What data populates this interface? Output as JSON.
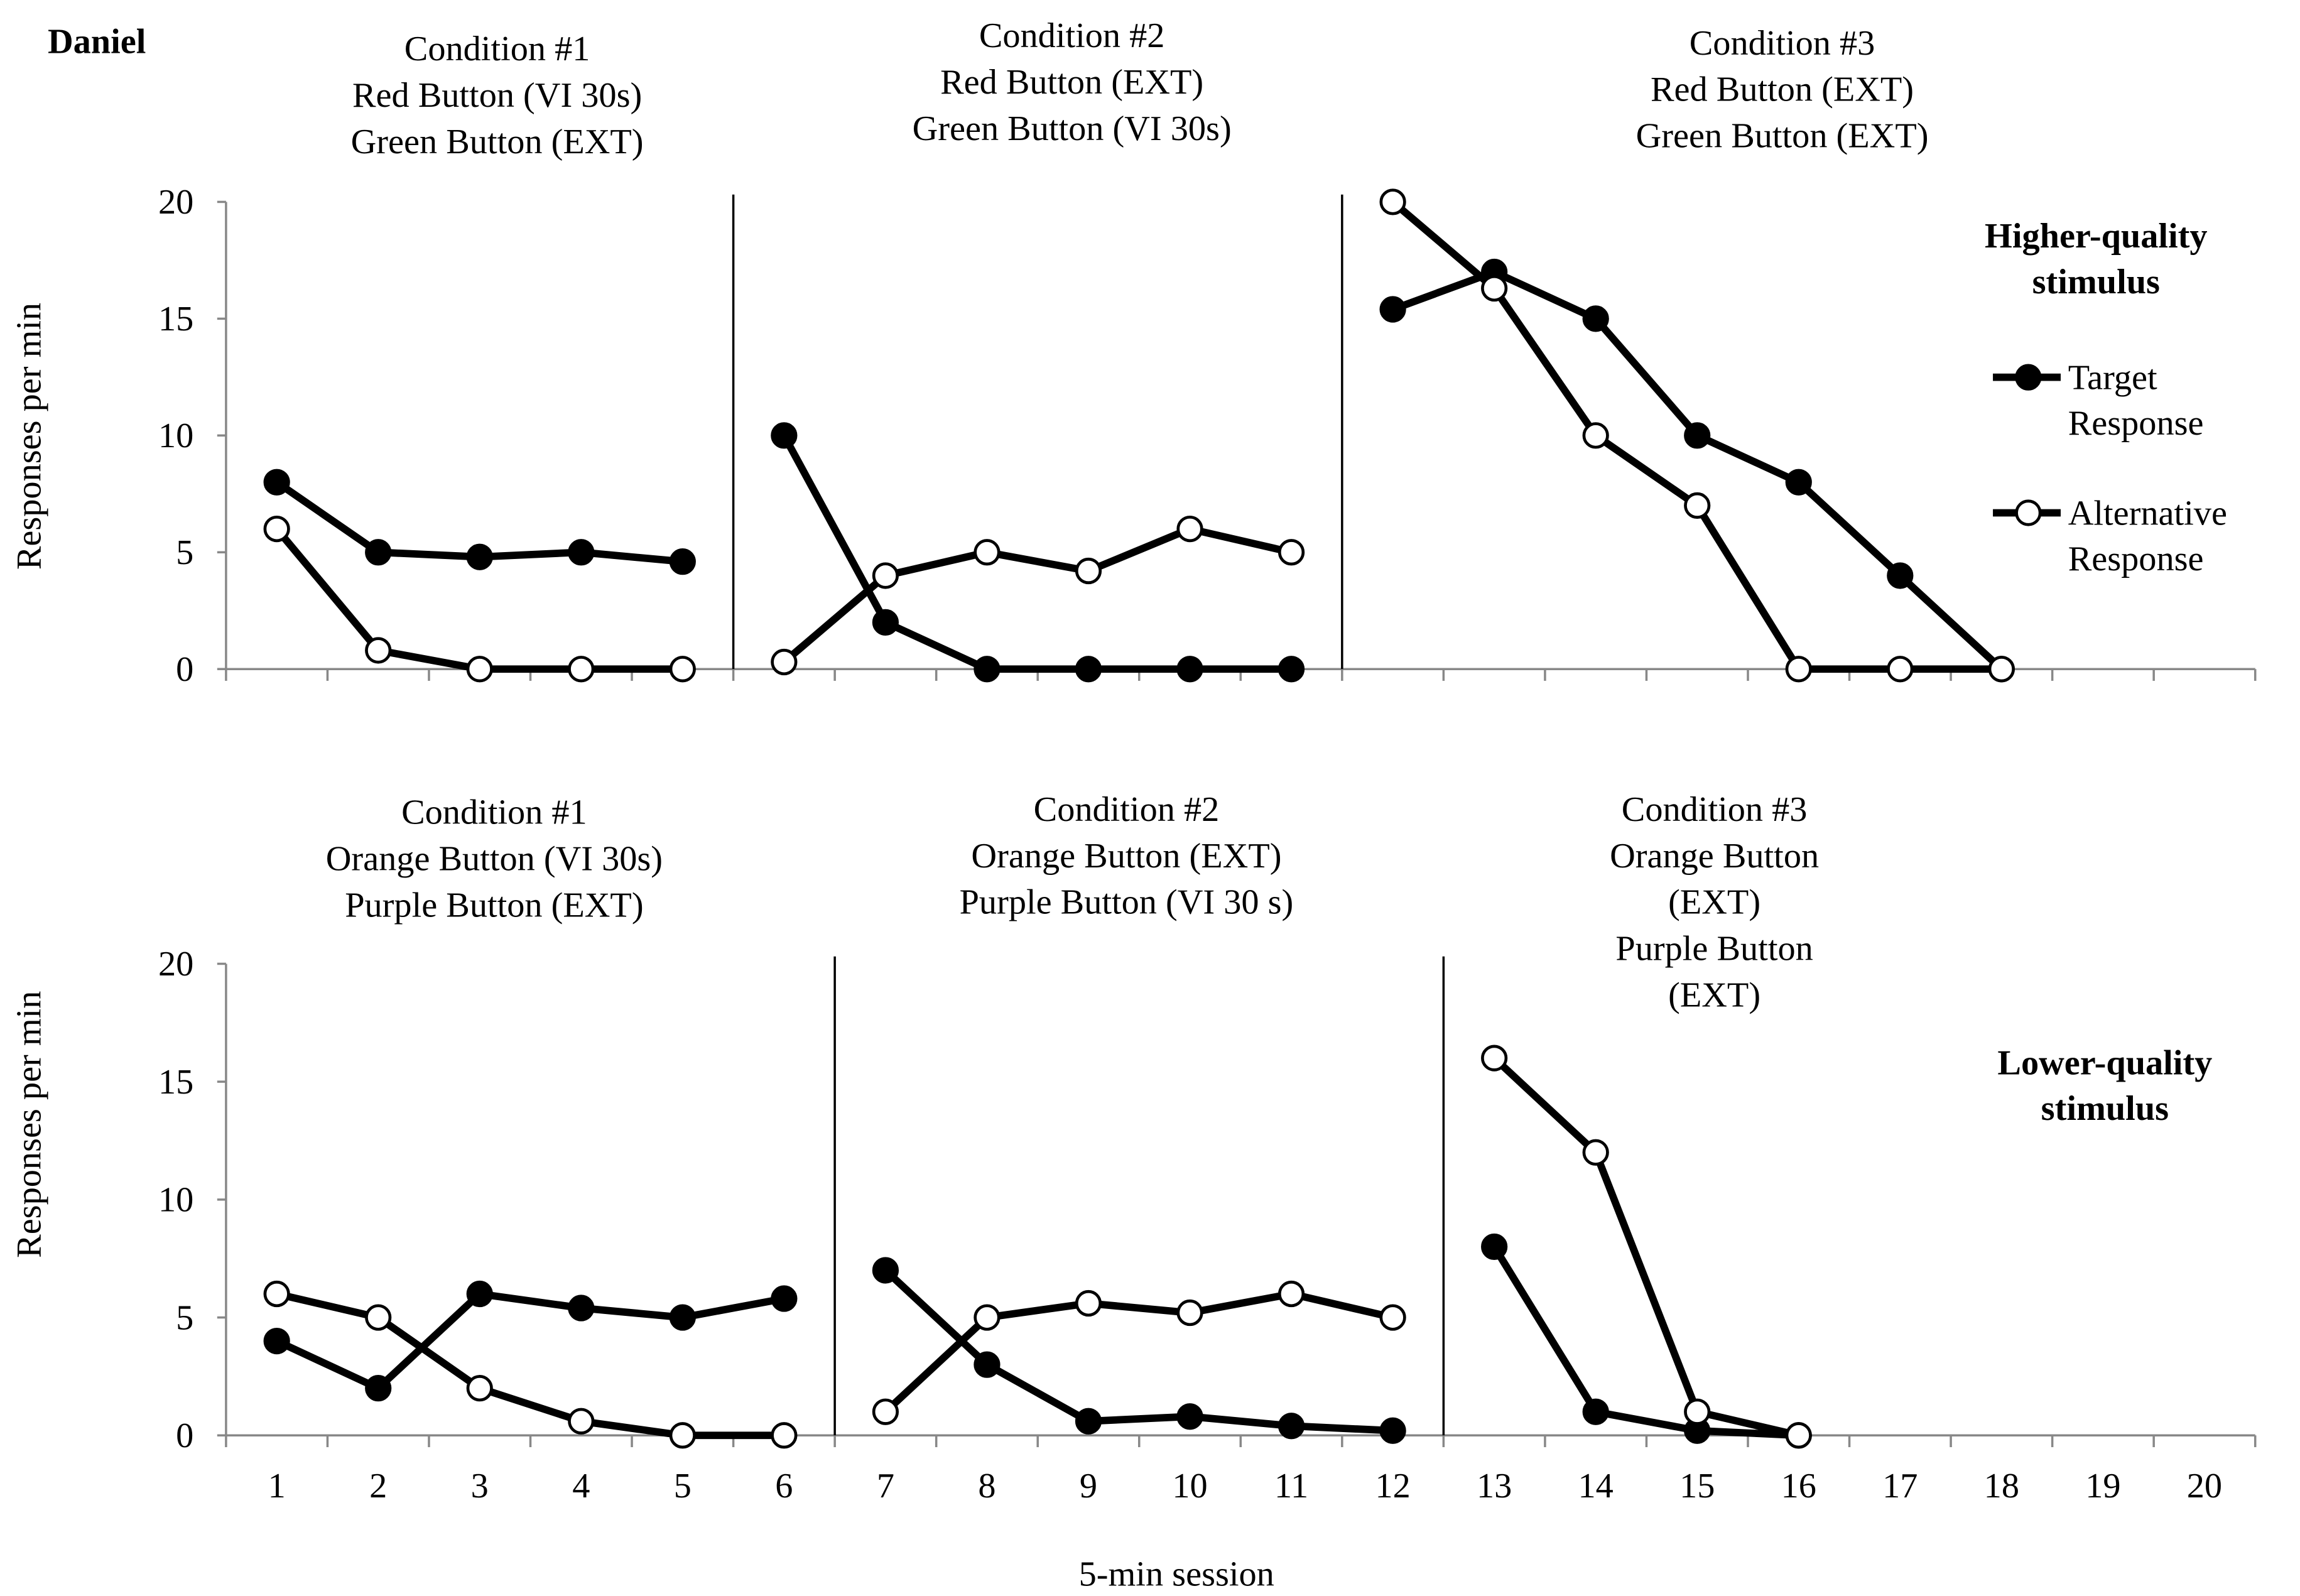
{
  "participant": "Daniel",
  "xlabel": "5-min session",
  "legend": {
    "target": "Target Response",
    "target_lines": [
      "Target",
      "Response"
    ],
    "alternative": "Alternative Response",
    "alternative_lines": [
      "Alternative",
      "Response"
    ]
  },
  "chart_data": [
    {
      "type": "line",
      "panel_label": [
        "Higher-quality",
        "stimulus"
      ],
      "ylabel": "Responses per min",
      "ylim": [
        0,
        20
      ],
      "yticks": [
        0,
        5,
        10,
        15,
        20
      ],
      "xlim": [
        0.5,
        20.5
      ],
      "xtick_labels_shown": false,
      "phases": [
        {
          "title": [
            "Condition #1",
            "Red Button (VI 30s)",
            "Green Button (EXT)"
          ],
          "x": [
            1,
            2,
            3,
            4,
            5
          ],
          "target": [
            8,
            5,
            4.8,
            5,
            4.6
          ],
          "alternative": [
            6,
            0.8,
            0,
            0,
            0
          ]
        },
        {
          "title": [
            "Condition #2",
            "Red Button (EXT)",
            "Green Button (VI 30s)"
          ],
          "x": [
            6,
            7,
            8,
            9,
            10,
            11
          ],
          "target": [
            10,
            2,
            0,
            0,
            0,
            0
          ],
          "alternative": [
            0.3,
            4,
            5,
            4.2,
            6,
            5
          ]
        },
        {
          "title": [
            "Condition #3",
            "Red Button (EXT)",
            "Green Button (EXT)"
          ],
          "x": [
            12,
            13,
            14,
            15,
            16,
            17,
            18
          ],
          "target": [
            15.4,
            17,
            15,
            10,
            8,
            4,
            0
          ],
          "alternative": [
            20,
            16.3,
            10,
            7,
            0,
            0,
            0
          ]
        }
      ],
      "phase_lines_after": [
        5,
        11
      ]
    },
    {
      "type": "line",
      "panel_label": [
        "Lower-quality",
        "stimulus"
      ],
      "ylabel": "Responses per min",
      "ylim": [
        0,
        20
      ],
      "yticks": [
        0,
        5,
        10,
        15,
        20
      ],
      "xlim": [
        0.5,
        20.5
      ],
      "xticks": [
        "1",
        "2",
        "3",
        "4",
        "5",
        "6",
        "7",
        "8",
        "9",
        "10",
        "11",
        "12",
        "13",
        "14",
        "15",
        "16",
        "17",
        "18",
        "19",
        "20"
      ],
      "phases": [
        {
          "title": [
            "Condition #1",
            "Orange Button (VI 30s)",
            "Purple Button (EXT)"
          ],
          "x": [
            1,
            2,
            3,
            4,
            5,
            6
          ],
          "target": [
            4,
            2,
            6,
            5.4,
            5,
            5.8
          ],
          "alternative": [
            6,
            5,
            2,
            0.6,
            0,
            0
          ]
        },
        {
          "title": [
            "Condition #2",
            "Orange Button (EXT)",
            "Purple Button (VI 30 s)"
          ],
          "x": [
            7,
            8,
            9,
            10,
            11,
            12
          ],
          "target": [
            7,
            3,
            0.6,
            0.8,
            0.4,
            0.2
          ],
          "alternative": [
            1,
            5,
            5.6,
            5.2,
            6,
            5
          ]
        },
        {
          "title": [
            "Condition #3",
            "Orange Button",
            "(EXT)",
            "Purple Button",
            "(EXT)"
          ],
          "x": [
            13,
            14,
            15,
            16
          ],
          "target": [
            8,
            1,
            0.2,
            0
          ],
          "alternative": [
            16,
            12,
            1,
            0
          ]
        }
      ],
      "phase_lines_after": [
        6,
        12
      ]
    }
  ]
}
